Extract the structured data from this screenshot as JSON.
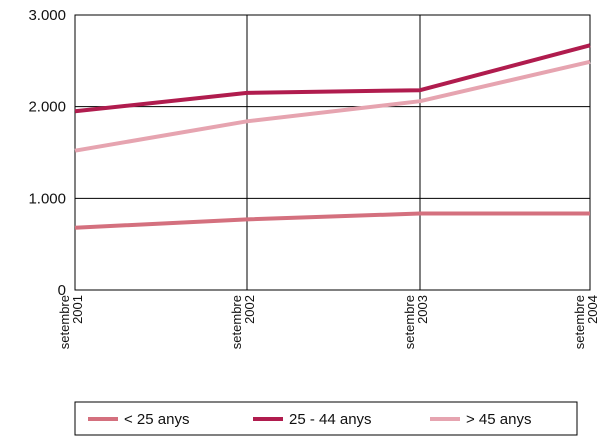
{
  "chart_data": {
    "type": "line",
    "title": "",
    "xlabel": "",
    "ylabel": "",
    "categories": [
      [
        "setembre",
        "2001"
      ],
      [
        "setembre",
        "2002"
      ],
      [
        "setembre",
        "2003"
      ],
      [
        "setembre",
        "2004"
      ]
    ],
    "ylim": [
      0,
      3000
    ],
    "yticks": [
      0,
      1000,
      2000,
      3000
    ],
    "ytick_labels": [
      "0",
      "1.000",
      "2.000",
      "3.000"
    ],
    "grid": true,
    "legend_position": "bottom",
    "series": [
      {
        "name": "< 25 anys",
        "color": "#d4707e",
        "values": [
          680,
          770,
          835,
          835
        ]
      },
      {
        "name": "25 - 44 anys",
        "color": "#b01c4e",
        "values": [
          1950,
          2150,
          2180,
          2670
        ]
      },
      {
        "name": "> 45 anys",
        "color": "#e6a4b0",
        "values": [
          1520,
          1840,
          2060,
          2490
        ]
      }
    ]
  }
}
